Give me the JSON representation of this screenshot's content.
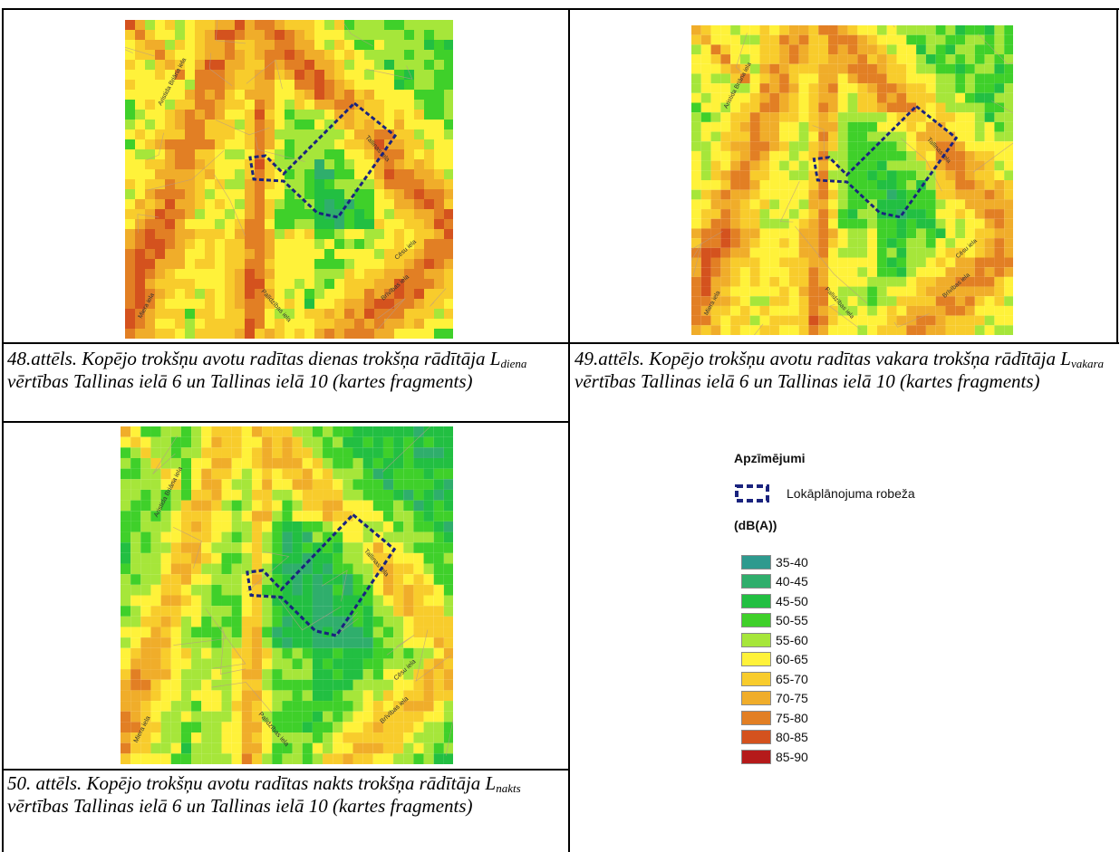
{
  "figures": [
    {
      "id": "fig48",
      "caption_prefix": "48.attēls. Kopējo trokšņu avotu radītas dienas trokšņa rādītāja L",
      "caption_sub": "diena",
      "caption_suffix": " vērtības Tallinas ielā 6 un Tallinas ielā 10 (kartes fragments)",
      "variant": "day"
    },
    {
      "id": "fig49",
      "caption_prefix": "49.attēls. Kopējo trokšņu avotu radītas vakara trokšņa rādītāja L",
      "caption_sub": "vakara",
      "caption_suffix": " vērtības Tallinas ielā 6 un Tallinas ielā 10 (kartes fragments)",
      "variant": "evening"
    },
    {
      "id": "fig50",
      "caption_prefix": "50. attēls. Kopējo trokšņu avotu radītas nakts trokšņa rādītāja L",
      "caption_sub": "nakts",
      "caption_suffix": " vērtības Tallinas ielā 6 un Tallinas ielā 10 (kartes fragments)",
      "variant": "night"
    }
  ],
  "street_labels": {
    "brivibas_left": "Aristida Briāna iela",
    "tallinas": "Tallinas iela",
    "cesu": "Cēsu iela",
    "brivibas": "Brīvības iela",
    "miera": "Miera iela",
    "palidzibas": "Palīdzības iela"
  },
  "legend": {
    "title": "Apzīmējumi",
    "boundary_label": "Lokāplānojuma robeža",
    "unit": "(dB(A))",
    "items": [
      {
        "label": "35-40",
        "color": "#2e9a8e"
      },
      {
        "label": "40-45",
        "color": "#2fae6c"
      },
      {
        "label": "45-50",
        "color": "#22bf42"
      },
      {
        "label": "50-55",
        "color": "#3fd02a"
      },
      {
        "label": "55-60",
        "color": "#a6e63a"
      },
      {
        "label": "60-65",
        "color": "#fff23a"
      },
      {
        "label": "65-70",
        "color": "#f8cc2c"
      },
      {
        "label": "70-75",
        "color": "#f0ad2a"
      },
      {
        "label": "75-80",
        "color": "#e27f24"
      },
      {
        "label": "80-85",
        "color": "#d4521e"
      },
      {
        "label": "85-90",
        "color": "#b51a1a"
      }
    ]
  },
  "colors": {
    "boundary": "#1a237e"
  }
}
